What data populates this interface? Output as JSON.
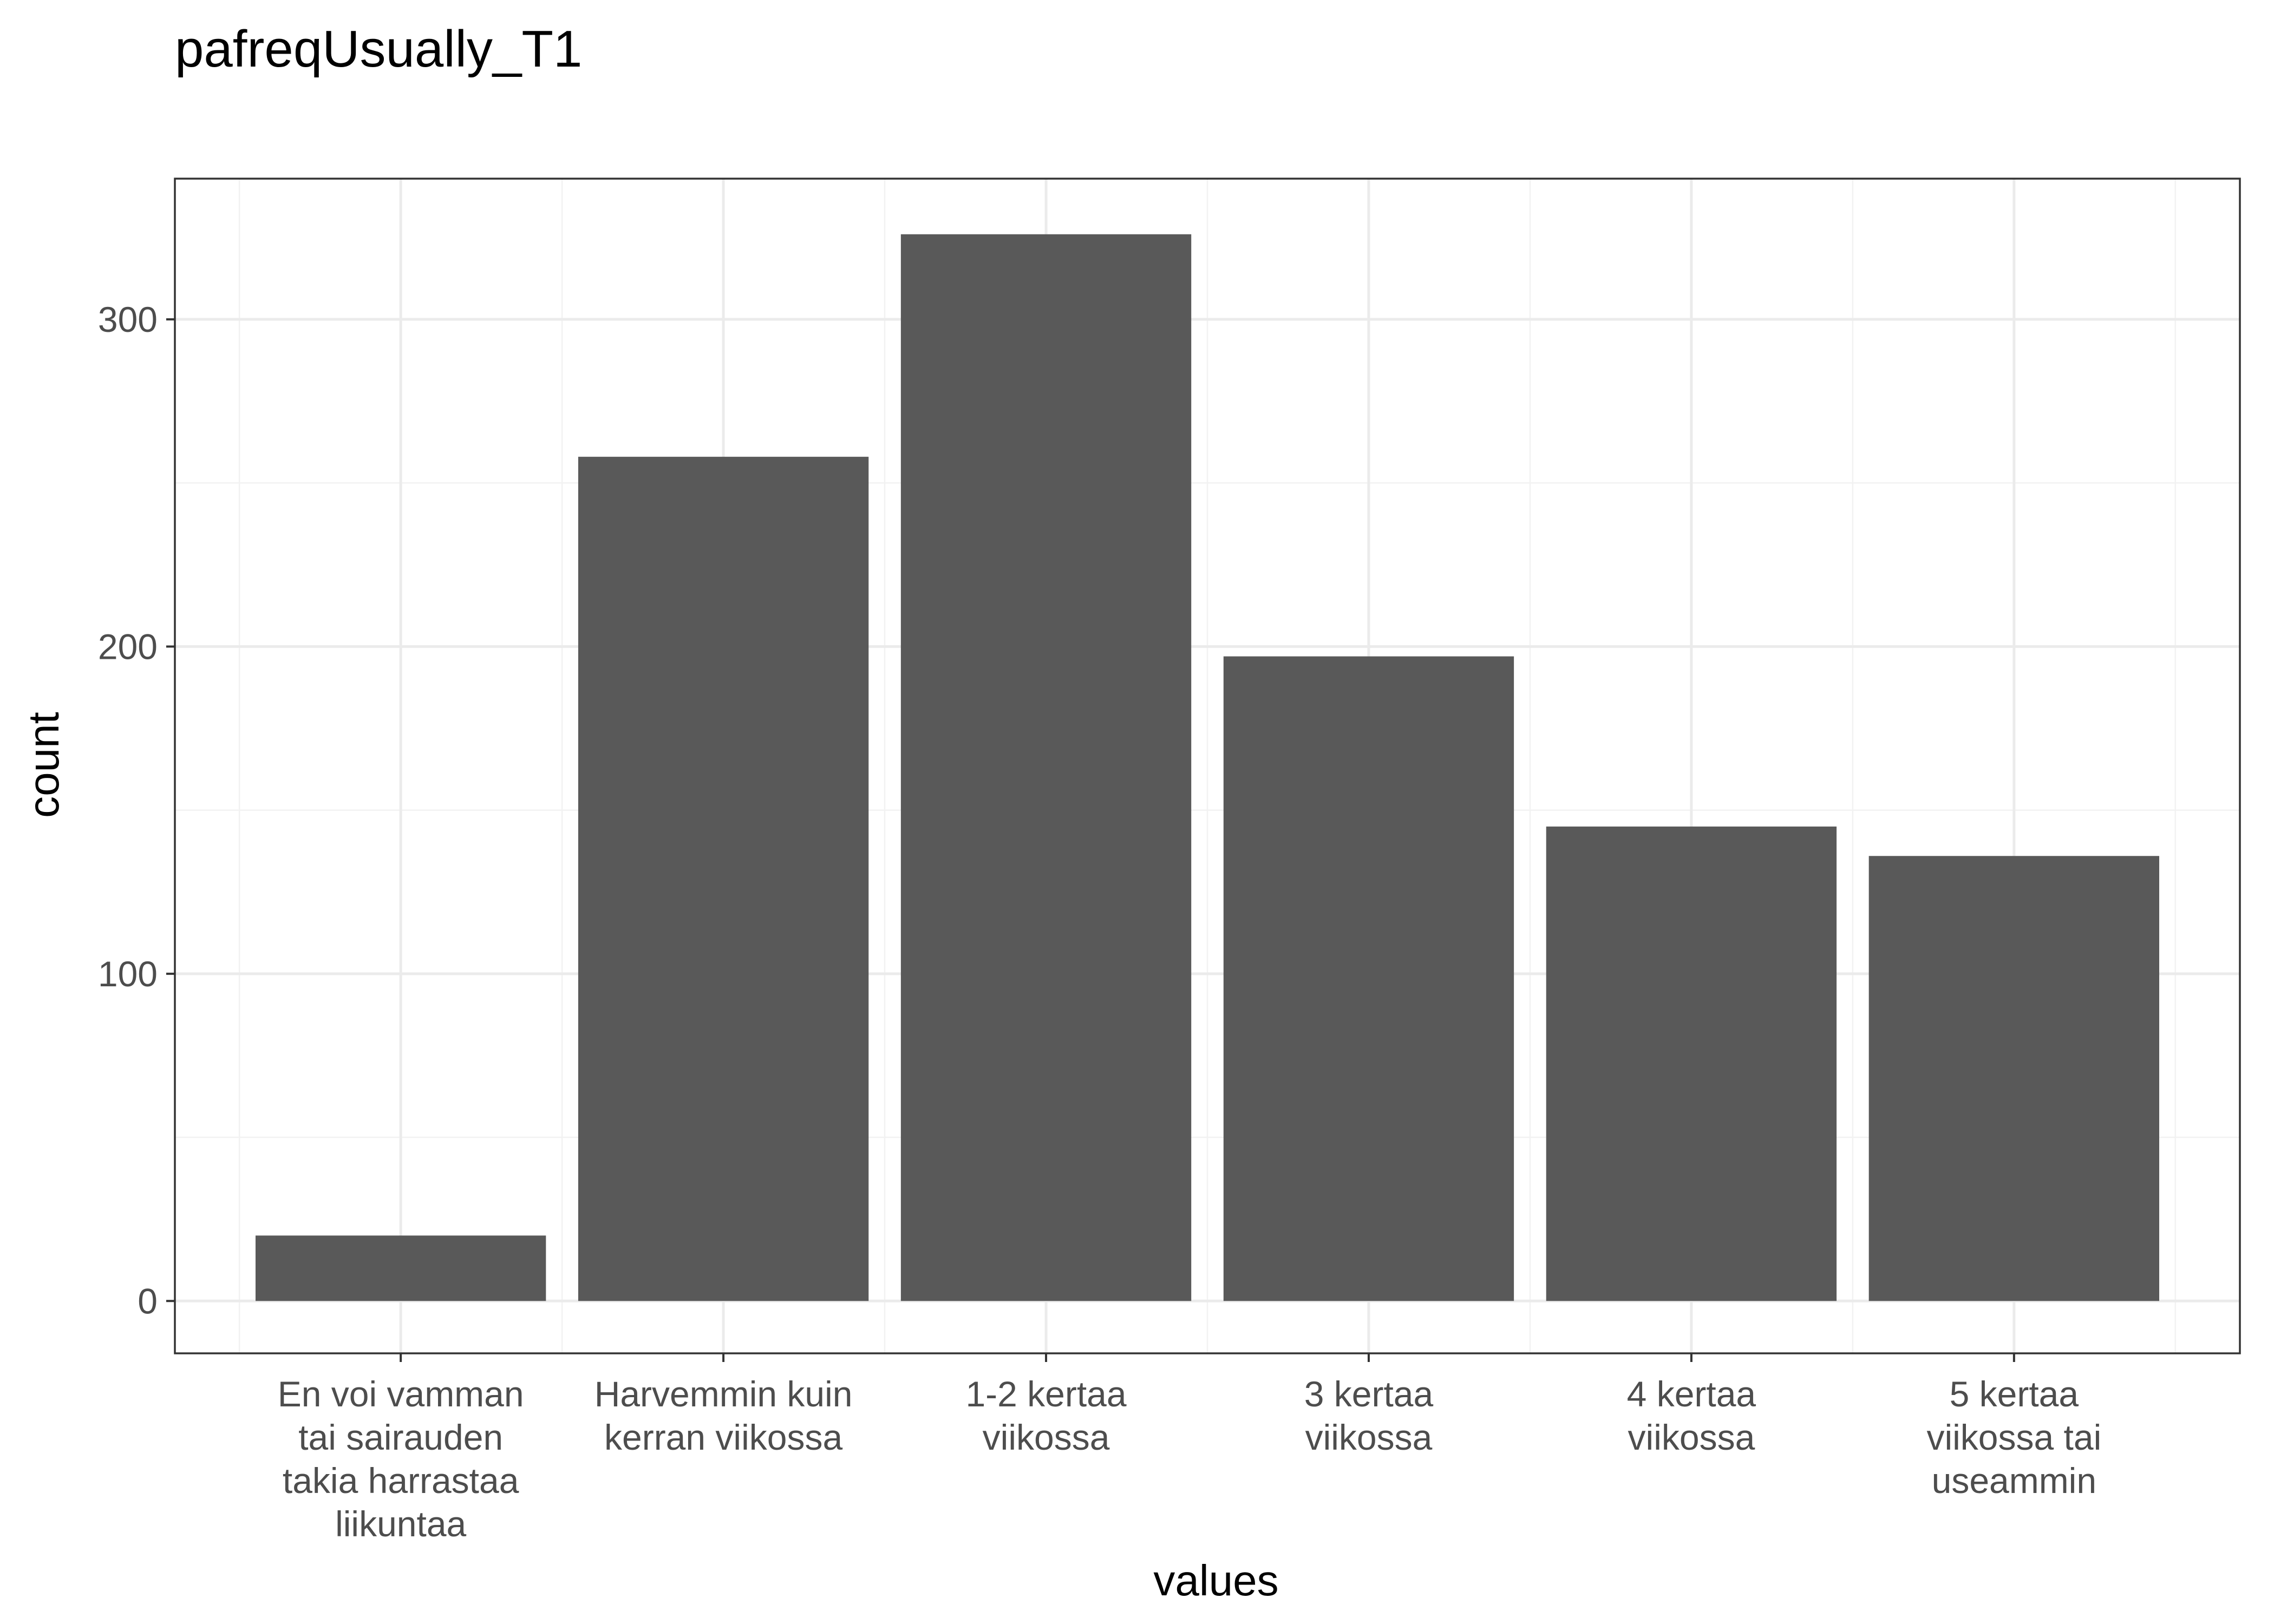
{
  "chart_data": {
    "type": "bar",
    "title": "pafreqUsually_T1",
    "xlabel": "values",
    "ylabel": "count",
    "categories": [
      [
        "En voi vamman",
        "tai sairauden",
        "takia harrastaa",
        "liikuntaa"
      ],
      [
        "Harvemmin kuin",
        "kerran viikossa"
      ],
      [
        "1-2 kertaa",
        "viikossa"
      ],
      [
        "3 kertaa",
        "viikossa"
      ],
      [
        "4 kertaa",
        "viikossa"
      ],
      [
        "5 kertaa",
        "viikossa tai",
        "useammin"
      ]
    ],
    "values": [
      20,
      258,
      326,
      197,
      145,
      136
    ],
    "ylim": [
      -16,
      343
    ],
    "yticks": [
      "0",
      "100",
      "200",
      "300"
    ],
    "grid": true,
    "bar_color": "#595959",
    "grid_major_color": "#ebebeb",
    "grid_minor_color": "#f2f2f2",
    "panel_border_color": "#333333"
  }
}
